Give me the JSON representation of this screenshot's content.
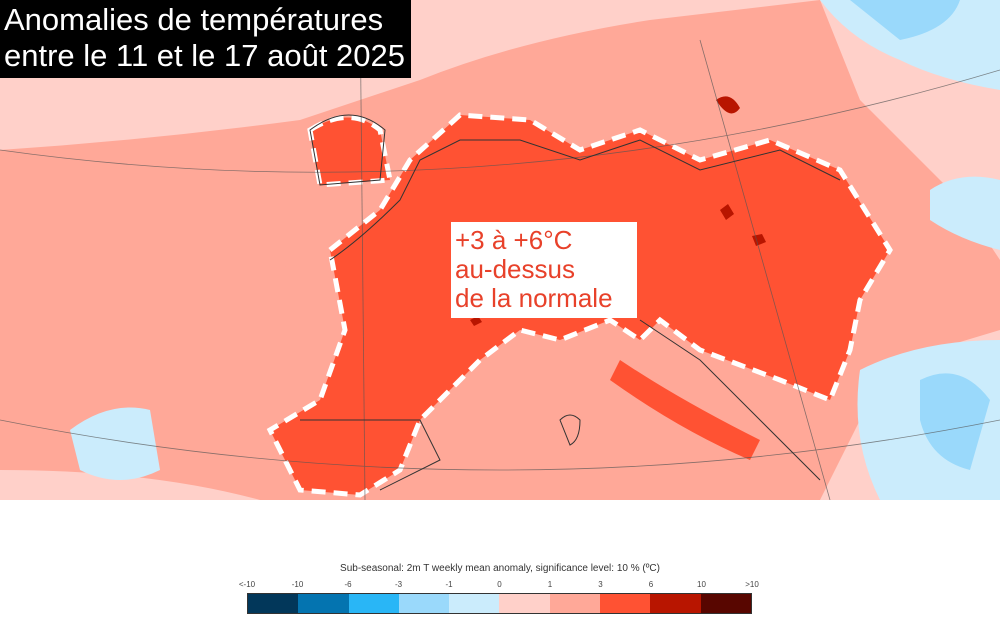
{
  "title": {
    "line1": "Anomalies de températures",
    "line2": "entre le 11 et le 17 août 2025"
  },
  "annotation": {
    "line1": "+3 à +6°C",
    "line2": "au-dessus",
    "line3": "de la normale"
  },
  "legend": {
    "caption": "Sub-seasonal: 2m T weekly mean anomaly, significance level: 10 % (ºC)",
    "ticks": [
      "<-10",
      "-10",
      "-6",
      "-3",
      "-1",
      "0",
      "1",
      "3",
      "6",
      "10",
      ">10"
    ],
    "colors": [
      "#02375a",
      "#0474b0",
      "#29b6f6",
      "#9ad9fb",
      "#cbecfc",
      "#ffd0c9",
      "#ffa898",
      "#ff5233",
      "#b81500",
      "#580600"
    ]
  }
}
